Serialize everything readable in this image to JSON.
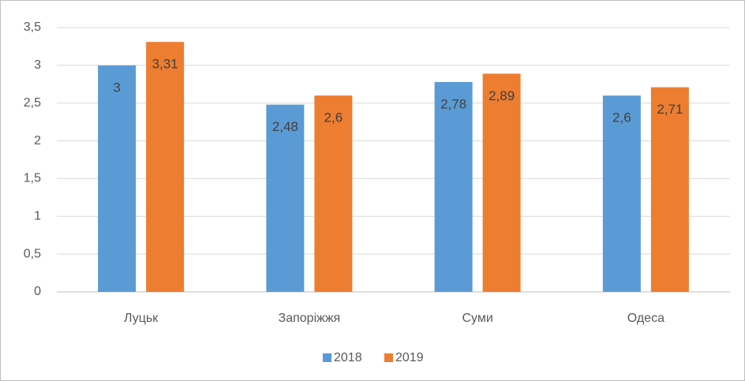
{
  "chart_data": {
    "type": "bar",
    "categories": [
      "Луцьк",
      "Запоріжжя",
      "Суми",
      "Одеса"
    ],
    "series": [
      {
        "name": "2018",
        "color": "#5b9bd5",
        "values": [
          3,
          2.48,
          2.78,
          2.6
        ],
        "value_labels": [
          "3",
          "2,48",
          "2,78",
          "2,6"
        ]
      },
      {
        "name": "2019",
        "color": "#ed7d31",
        "values": [
          3.31,
          2.6,
          2.89,
          2.71
        ],
        "value_labels": [
          "3,31",
          "2,6",
          "2,89",
          "2,71"
        ]
      }
    ],
    "ylim": [
      0,
      3.5
    ],
    "yticks": [
      0,
      {
        "value": 0.5,
        "label": "0,5"
      },
      1,
      {
        "value": 1.5,
        "label": "1,5"
      },
      2,
      {
        "value": 2.5,
        "label": "2,5"
      },
      3,
      {
        "value": 3.5,
        "label": "3,5"
      }
    ],
    "grid": true,
    "legend": "bottom"
  }
}
